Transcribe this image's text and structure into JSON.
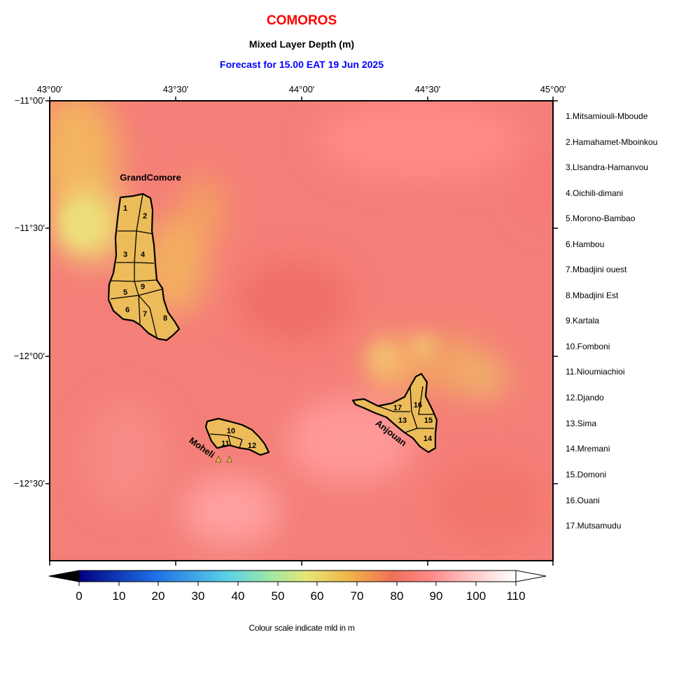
{
  "header": {
    "country": "COMOROS",
    "variable": "Mixed Layer Depth (m)",
    "forecast": "Forecast for  15.00 EAT 19 Jun 2025"
  },
  "map": {
    "lon_labels": [
      "43°00'",
      "43°30'",
      "44°00'",
      "44°30'",
      "45°00'"
    ],
    "lat_labels": [
      "−11°00'",
      "−11°30'",
      "−12°00'",
      "−12°30'"
    ],
    "island_labels": {
      "grand_comore": "GrandComore",
      "moheli": "Moheli",
      "anjouan": "Anjouan"
    },
    "region_numbers": [
      "1",
      "2",
      "3",
      "4",
      "5",
      "6",
      "7",
      "8",
      "9",
      "10",
      "11",
      "12",
      "13",
      "14",
      "15",
      "16",
      "17"
    ]
  },
  "legend": {
    "regions": [
      "1.Mitsamiouli-Mboude",
      "2.Hamahamet-Mboinkou",
      "3.Llsandra-Hamanvou",
      "4.Oichili-dimani",
      "5.Morono-Bambao",
      "6.Hambou",
      "7.Mbadjini ouest",
      "8.Mbadjini Est",
      "9.Kartala",
      "10.Fomboni",
      "11.Nioumiachioi",
      "12.Djando",
      "13.Sima",
      "14.Mremani",
      "15.Domoni",
      "16.Ouani",
      "17.Mutsamudu"
    ]
  },
  "colorbar": {
    "ticks": [
      "0",
      "10",
      "20",
      "30",
      "40",
      "50",
      "60",
      "70",
      "80",
      "90",
      "100",
      "110"
    ],
    "caption": "Colour scale indicate mld in m",
    "colors": {
      "0": "#00007f",
      "20": "#1e6ee6",
      "40": "#5ad2e8",
      "50": "#a0e8a0",
      "60": "#e6e678",
      "70": "#f0b446",
      "80": "#f06e5a",
      "90": "#ff8c8c",
      "100": "#ffc8c8",
      "110": "#ffffff"
    }
  },
  "colors": {
    "field_base": "#f47f78",
    "island_fill": "#ecbc5a",
    "title_red": "#ff0000",
    "title_blue": "#0000ff"
  }
}
